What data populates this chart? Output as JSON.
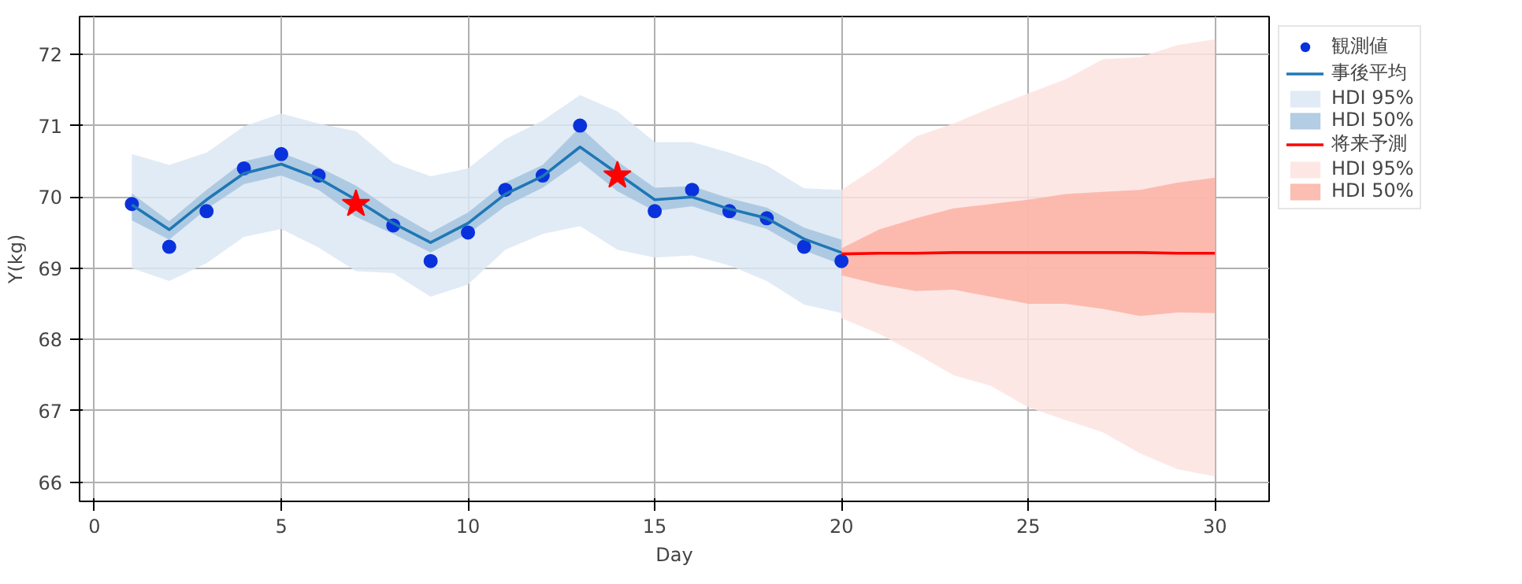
{
  "chart_data": {
    "type": "line",
    "xlabel": "Day",
    "ylabel": "Y(kg)",
    "xlim": [
      -0.4,
      31.45
    ],
    "ylim": [
      65.73,
      72.53
    ],
    "xticks": [
      0,
      5,
      10,
      15,
      20,
      25,
      30
    ],
    "yticks": [
      66,
      67,
      68,
      69,
      70,
      71,
      72
    ],
    "grid": true,
    "legend": "top right",
    "series": [
      {
        "type": "scatter",
        "name": "観測値",
        "color": "#0a32dc",
        "marker": "circle",
        "x": [
          1,
          2,
          3,
          4,
          5,
          6,
          8,
          9,
          10,
          11,
          12,
          13,
          15,
          16,
          17,
          18,
          19,
          20
        ],
        "values": [
          69.9,
          69.3,
          69.8,
          70.4,
          70.6,
          70.3,
          69.6,
          69.1,
          69.5,
          70.1,
          70.3,
          71.0,
          69.8,
          70.1,
          69.8,
          69.7,
          69.3,
          69.1
        ]
      },
      {
        "type": "line",
        "name": "事後平均",
        "color": "#1f77b4",
        "x": [
          1,
          2,
          3,
          4,
          5,
          6,
          7,
          8,
          9,
          10,
          11,
          12,
          13,
          14,
          15,
          16,
          17,
          18,
          19,
          20
        ],
        "values": [
          69.89,
          69.54,
          69.96,
          70.33,
          70.46,
          70.26,
          69.96,
          69.63,
          69.36,
          69.63,
          70.04,
          70.29,
          70.7,
          70.33,
          69.96,
          70.0,
          69.83,
          69.7,
          69.41,
          69.22
        ]
      },
      {
        "name": "HDI 95%",
        "color": "#dce8f3",
        "x": [
          1,
          2,
          3,
          4,
          5,
          6,
          7,
          8,
          9,
          10,
          11,
          12,
          13,
          14,
          15,
          16,
          17,
          18,
          19,
          20
        ],
        "values": [
          null,
          null,
          null,
          null,
          null,
          null,
          null,
          null,
          null,
          null,
          null,
          null,
          null,
          null,
          null,
          null,
          null,
          null,
          null,
          null
        ],
        "upper": [
          70.6,
          70.45,
          70.62,
          70.99,
          71.17,
          71.03,
          70.92,
          70.48,
          70.29,
          70.4,
          70.81,
          71.07,
          71.43,
          71.2,
          70.77,
          70.77,
          70.62,
          70.44,
          70.12,
          70.1
        ],
        "lower": [
          69.0,
          68.82,
          69.07,
          69.44,
          69.55,
          69.29,
          68.96,
          68.93,
          68.6,
          68.77,
          69.26,
          69.48,
          69.59,
          69.26,
          69.15,
          69.18,
          69.04,
          68.82,
          68.49,
          68.37
        ]
      },
      {
        "name": "HDI 50%",
        "color": "#a4c4df",
        "x": [
          1,
          2,
          3,
          4,
          5,
          6,
          7,
          8,
          9,
          10,
          11,
          12,
          13,
          14,
          15,
          16,
          17,
          18,
          19,
          20
        ],
        "values": [
          null,
          null,
          null,
          null,
          null,
          null,
          null,
          null,
          null,
          null,
          null,
          null,
          null,
          null,
          null,
          null,
          null,
          null,
          null,
          null
        ],
        "upper": [
          70.05,
          69.66,
          70.1,
          70.5,
          70.62,
          70.42,
          70.16,
          69.8,
          69.5,
          69.78,
          70.2,
          70.45,
          70.98,
          70.5,
          70.13,
          70.15,
          69.98,
          69.85,
          69.57,
          69.4
        ],
        "lower": [
          69.67,
          69.4,
          69.83,
          70.18,
          70.3,
          70.1,
          69.72,
          69.48,
          69.22,
          69.48,
          69.87,
          70.13,
          70.5,
          70.08,
          69.8,
          69.87,
          69.7,
          69.55,
          69.25,
          69.05
        ]
      },
      {
        "type": "line",
        "name": "将来予測",
        "color": "#ff0000",
        "x": [
          20,
          21,
          22,
          23,
          24,
          25,
          26,
          27,
          28,
          29,
          30
        ],
        "values": [
          69.2,
          69.21,
          69.21,
          69.22,
          69.22,
          69.22,
          69.22,
          69.22,
          69.22,
          69.21,
          69.21
        ]
      },
      {
        "name": "HDI 95%",
        "color": "#fde3df",
        "x": [
          20,
          21,
          22,
          23,
          24,
          25,
          26,
          27,
          28,
          29,
          30
        ],
        "values": [
          null,
          null,
          null,
          null,
          null,
          null,
          null,
          null,
          null,
          null,
          null
        ],
        "upper": [
          70.1,
          70.44,
          70.85,
          71.03,
          71.25,
          71.45,
          71.65,
          71.93,
          71.96,
          72.13,
          72.21
        ],
        "lower": [
          68.3,
          68.08,
          67.8,
          67.5,
          67.35,
          67.05,
          66.87,
          66.7,
          66.4,
          66.18,
          66.08
        ]
      },
      {
        "name": "HDI 50%",
        "color": "#fcb1a4",
        "x": [
          20,
          21,
          22,
          23,
          24,
          25,
          26,
          27,
          28,
          29,
          30
        ],
        "values": [
          null,
          null,
          null,
          null,
          null,
          null,
          null,
          null,
          null,
          null,
          null
        ],
        "upper": [
          69.28,
          69.54,
          69.7,
          69.84,
          69.9,
          69.96,
          70.04,
          70.07,
          70.1,
          70.2,
          70.27
        ],
        "lower": [
          68.9,
          68.77,
          68.68,
          68.7,
          68.6,
          68.5,
          68.5,
          68.43,
          68.33,
          68.38,
          68.37
        ]
      },
      {
        "type": "scatter",
        "color": "#ff0000",
        "marker": "star",
        "x": [
          7,
          14
        ],
        "values": [
          69.9,
          70.3
        ]
      }
    ]
  }
}
